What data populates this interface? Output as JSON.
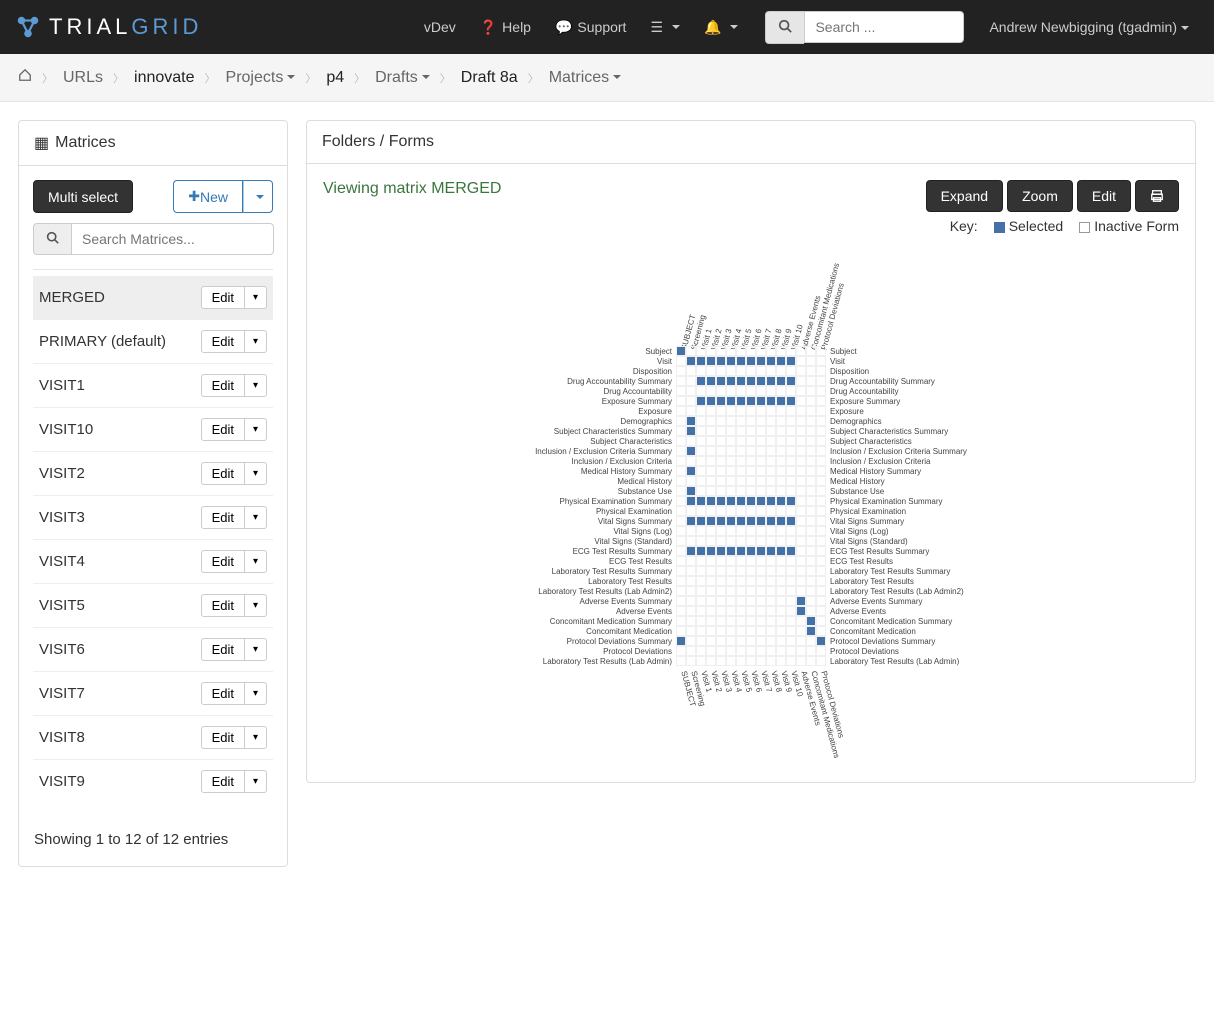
{
  "brand": {
    "name1": "TRIAL",
    "name2": "GRID"
  },
  "topnav": {
    "vdev": "vDev",
    "help": "Help",
    "support": "Support",
    "search_placeholder": "Search ...",
    "user": "Andrew Newbigging (tgadmin)"
  },
  "breadcrumb": [
    {
      "label": "URLs",
      "active": false
    },
    {
      "label": "innovate",
      "active": true
    },
    {
      "label": "Projects",
      "active": false,
      "dropdown": true
    },
    {
      "label": "p4",
      "active": true
    },
    {
      "label": "Drafts",
      "active": false,
      "dropdown": true
    },
    {
      "label": "Draft 8a",
      "active": true
    },
    {
      "label": "Matrices",
      "active": false,
      "dropdown": true
    }
  ],
  "sidebar": {
    "title": "Matrices",
    "multi_select": "Multi select",
    "new_btn": "New",
    "search_placeholder": "Search Matrices...",
    "items": [
      {
        "name": "MERGED",
        "selected": true
      },
      {
        "name": "PRIMARY (default)",
        "selected": false
      },
      {
        "name": "VISIT1",
        "selected": false
      },
      {
        "name": "VISIT10",
        "selected": false
      },
      {
        "name": "VISIT2",
        "selected": false
      },
      {
        "name": "VISIT3",
        "selected": false
      },
      {
        "name": "VISIT4",
        "selected": false
      },
      {
        "name": "VISIT5",
        "selected": false
      },
      {
        "name": "VISIT6",
        "selected": false
      },
      {
        "name": "VISIT7",
        "selected": false
      },
      {
        "name": "VISIT8",
        "selected": false
      },
      {
        "name": "VISIT9",
        "selected": false
      }
    ],
    "edit_label": "Edit",
    "entries_info": "Showing 1 to 12 of 12 entries"
  },
  "content": {
    "heading": "Folders / Forms",
    "viewing": "Viewing matrix MERGED",
    "expand": "Expand",
    "zoom": "Zoom",
    "edit": "Edit",
    "key_label": "Key:",
    "key_selected": "Selected",
    "key_inactive": "Inactive Form",
    "colors": {
      "selected": "#4472a8",
      "inactive_border": "#999999",
      "grid_line": "#f0f0f0",
      "viewing_text": "#3c763d"
    },
    "matrix": {
      "columns": [
        "SUBJECT",
        "Screening",
        "Visit 1",
        "Visit 2",
        "Visit 3",
        "Visit 4",
        "Visit 5",
        "Visit 6",
        "Visit 7",
        "Visit 8",
        "Visit 9",
        "Visit 10",
        "Adverse Events",
        "Concomitant Medications",
        "Protocol Deviations"
      ],
      "rows": [
        {
          "label": "Subject",
          "cells": [
            1,
            0,
            0,
            0,
            0,
            0,
            0,
            0,
            0,
            0,
            0,
            0,
            0,
            0,
            0
          ]
        },
        {
          "label": "Visit",
          "cells": [
            0,
            1,
            1,
            1,
            1,
            1,
            1,
            1,
            1,
            1,
            1,
            1,
            0,
            0,
            0
          ]
        },
        {
          "label": "Disposition",
          "cells": [
            0,
            0,
            0,
            0,
            0,
            0,
            0,
            0,
            0,
            0,
            0,
            0,
            0,
            0,
            0
          ]
        },
        {
          "label": "Drug Accountability Summary",
          "cells": [
            0,
            0,
            1,
            1,
            1,
            1,
            1,
            1,
            1,
            1,
            1,
            1,
            0,
            0,
            0
          ]
        },
        {
          "label": "Drug Accountability",
          "cells": [
            0,
            0,
            0,
            0,
            0,
            0,
            0,
            0,
            0,
            0,
            0,
            0,
            0,
            0,
            0
          ]
        },
        {
          "label": "Exposure Summary",
          "cells": [
            0,
            0,
            1,
            1,
            1,
            1,
            1,
            1,
            1,
            1,
            1,
            1,
            0,
            0,
            0
          ]
        },
        {
          "label": "Exposure",
          "cells": [
            0,
            0,
            0,
            0,
            0,
            0,
            0,
            0,
            0,
            0,
            0,
            0,
            0,
            0,
            0
          ]
        },
        {
          "label": "Demographics",
          "cells": [
            0,
            1,
            0,
            0,
            0,
            0,
            0,
            0,
            0,
            0,
            0,
            0,
            0,
            0,
            0
          ]
        },
        {
          "label": "Subject Characteristics Summary",
          "cells": [
            0,
            1,
            0,
            0,
            0,
            0,
            0,
            0,
            0,
            0,
            0,
            0,
            0,
            0,
            0
          ]
        },
        {
          "label": "Subject Characteristics",
          "cells": [
            0,
            0,
            0,
            0,
            0,
            0,
            0,
            0,
            0,
            0,
            0,
            0,
            0,
            0,
            0
          ]
        },
        {
          "label": "Inclusion / Exclusion Criteria Summary",
          "cells": [
            0,
            1,
            0,
            0,
            0,
            0,
            0,
            0,
            0,
            0,
            0,
            0,
            0,
            0,
            0
          ]
        },
        {
          "label": "Inclusion / Exclusion Criteria",
          "cells": [
            0,
            0,
            0,
            0,
            0,
            0,
            0,
            0,
            0,
            0,
            0,
            0,
            0,
            0,
            0
          ]
        },
        {
          "label": "Medical History Summary",
          "cells": [
            0,
            1,
            0,
            0,
            0,
            0,
            0,
            0,
            0,
            0,
            0,
            0,
            0,
            0,
            0
          ]
        },
        {
          "label": "Medical History",
          "cells": [
            0,
            0,
            0,
            0,
            0,
            0,
            0,
            0,
            0,
            0,
            0,
            0,
            0,
            0,
            0
          ]
        },
        {
          "label": "Substance Use",
          "cells": [
            0,
            1,
            0,
            0,
            0,
            0,
            0,
            0,
            0,
            0,
            0,
            0,
            0,
            0,
            0
          ]
        },
        {
          "label": "Physical Examination Summary",
          "cells": [
            0,
            1,
            1,
            1,
            1,
            1,
            1,
            1,
            1,
            1,
            1,
            1,
            0,
            0,
            0
          ]
        },
        {
          "label": "Physical Examination",
          "cells": [
            0,
            0,
            0,
            0,
            0,
            0,
            0,
            0,
            0,
            0,
            0,
            0,
            0,
            0,
            0
          ]
        },
        {
          "label": "Vital Signs Summary",
          "cells": [
            0,
            1,
            1,
            1,
            1,
            1,
            1,
            1,
            1,
            1,
            1,
            1,
            0,
            0,
            0
          ]
        },
        {
          "label": "Vital Signs (Log)",
          "cells": [
            0,
            0,
            0,
            0,
            0,
            0,
            0,
            0,
            0,
            0,
            0,
            0,
            0,
            0,
            0
          ]
        },
        {
          "label": "Vital Signs (Standard)",
          "cells": [
            0,
            0,
            0,
            0,
            0,
            0,
            0,
            0,
            0,
            0,
            0,
            0,
            0,
            0,
            0
          ]
        },
        {
          "label": "ECG Test Results Summary",
          "cells": [
            0,
            1,
            1,
            1,
            1,
            1,
            1,
            1,
            1,
            1,
            1,
            1,
            0,
            0,
            0
          ]
        },
        {
          "label": "ECG Test Results",
          "cells": [
            0,
            0,
            0,
            0,
            0,
            0,
            0,
            0,
            0,
            0,
            0,
            0,
            0,
            0,
            0
          ]
        },
        {
          "label": "Laboratory Test Results Summary",
          "cells": [
            0,
            0,
            0,
            0,
            0,
            0,
            0,
            0,
            0,
            0,
            0,
            0,
            0,
            0,
            0
          ]
        },
        {
          "label": "Laboratory Test Results",
          "cells": [
            0,
            0,
            0,
            0,
            0,
            0,
            0,
            0,
            0,
            0,
            0,
            0,
            0,
            0,
            0
          ]
        },
        {
          "label": "Laboratory Test Results (Lab Admin2)",
          "cells": [
            0,
            0,
            0,
            0,
            0,
            0,
            0,
            0,
            0,
            0,
            0,
            0,
            0,
            0,
            0
          ]
        },
        {
          "label": "Adverse Events Summary",
          "cells": [
            0,
            0,
            0,
            0,
            0,
            0,
            0,
            0,
            0,
            0,
            0,
            0,
            1,
            0,
            0
          ]
        },
        {
          "label": "Adverse Events",
          "cells": [
            0,
            0,
            0,
            0,
            0,
            0,
            0,
            0,
            0,
            0,
            0,
            0,
            1,
            0,
            0
          ]
        },
        {
          "label": "Concomitant Medication Summary",
          "cells": [
            0,
            0,
            0,
            0,
            0,
            0,
            0,
            0,
            0,
            0,
            0,
            0,
            0,
            1,
            0
          ]
        },
        {
          "label": "Concomitant Medication",
          "cells": [
            0,
            0,
            0,
            0,
            0,
            0,
            0,
            0,
            0,
            0,
            0,
            0,
            0,
            1,
            0
          ]
        },
        {
          "label": "Protocol Deviations Summary",
          "cells": [
            1,
            0,
            0,
            0,
            0,
            0,
            0,
            0,
            0,
            0,
            0,
            0,
            0,
            0,
            1
          ]
        },
        {
          "label": "Protocol Deviations",
          "cells": [
            0,
            0,
            0,
            0,
            0,
            0,
            0,
            0,
            0,
            0,
            0,
            0,
            0,
            0,
            0
          ]
        },
        {
          "label": "Laboratory Test Results (Lab Admin)",
          "cells": [
            0,
            0,
            0,
            0,
            0,
            0,
            0,
            0,
            0,
            0,
            0,
            0,
            0,
            0,
            0
          ]
        }
      ]
    }
  }
}
